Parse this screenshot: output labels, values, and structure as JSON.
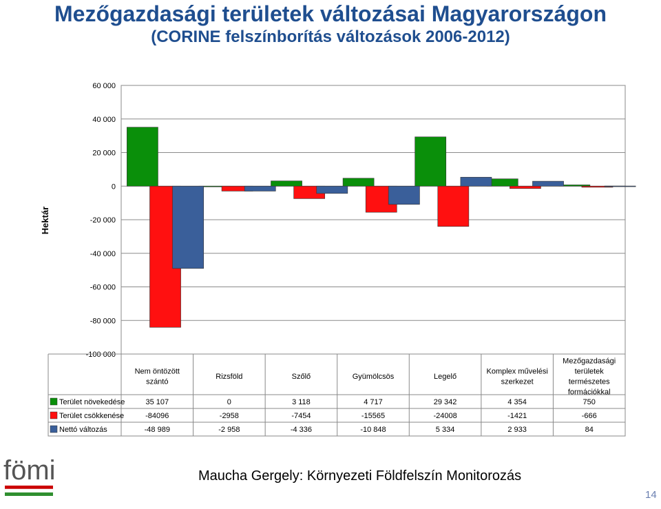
{
  "header": {
    "title": "Mezőgazdasági területek változásai Magyarországon",
    "subtitle": "(CORINE felszínborítás változások 2006-2012)"
  },
  "chart_data": {
    "type": "bar",
    "ylabel": "Hektár",
    "ylim": [
      -100000,
      60000
    ],
    "yticks": [
      60000,
      40000,
      20000,
      0,
      -20000,
      -40000,
      -60000,
      -80000,
      -100000
    ],
    "ytick_labels": [
      "60 000",
      "40 000",
      "20 000",
      "0",
      "-20 000",
      "-40 000",
      "-60 000",
      "-80 000",
      "-100 000"
    ],
    "grid": true,
    "categories": [
      [
        "Nem öntözött",
        "szántó"
      ],
      [
        "Rizsföld"
      ],
      [
        "Szőlő"
      ],
      [
        "Gyümölcsös"
      ],
      [
        "Legelő"
      ],
      [
        "Komplex művelési",
        "szerkezet"
      ],
      [
        "Mezőgazdasági",
        "területek",
        "természetes",
        "formációkkal"
      ]
    ],
    "series": [
      {
        "name": "Terület növekedése",
        "color": "#0a8f0a",
        "values": [
          35107,
          0,
          3118,
          4717,
          29342,
          4354,
          750
        ],
        "labels": [
          "35 107",
          "0",
          "3 118",
          "4 717",
          "29 342",
          "4 354",
          "750"
        ]
      },
      {
        "name": "Terület csökkenése",
        "color": "#ff1010",
        "values": [
          -84096,
          -2958,
          -7454,
          -15565,
          -24008,
          -1421,
          -666
        ],
        "labels": [
          "-84096",
          "-2958",
          "-7454",
          "-15565",
          "-24008",
          "-1421",
          "-666"
        ]
      },
      {
        "name": "Nettó változás",
        "color": "#3a5f9a",
        "values": [
          -48989,
          -2958,
          -4336,
          -10848,
          5334,
          2933,
          84
        ],
        "labels": [
          "-48 989",
          "-2 958",
          "-4 336",
          "-10 848",
          "5 334",
          "2 933",
          "84"
        ]
      }
    ]
  },
  "footer": {
    "author": "Maucha Gergely: Környezeti Földfelszín Monitorozás",
    "page_number": "14",
    "logo_text": "fömi"
  }
}
